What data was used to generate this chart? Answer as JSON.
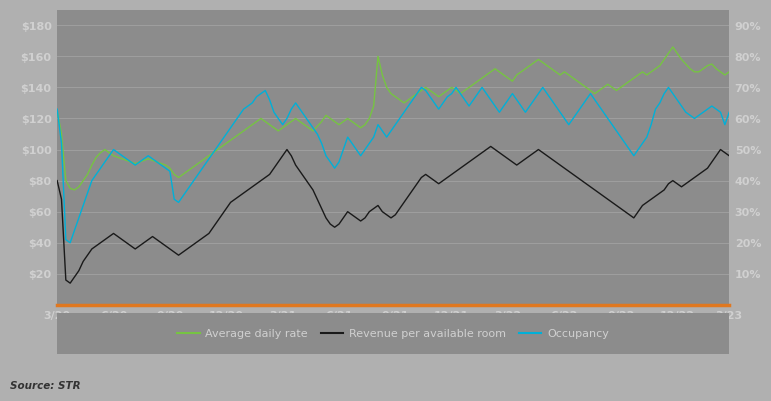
{
  "plot_bg_color": "#8c8c8c",
  "fig_bg_color": "#b0b0b0",
  "legend_bg_color": "#8c8c8c",
  "grid_color": "#a8a8a8",
  "orange_line_color": "#e07820",
  "adr_color": "#76c442",
  "revpar_color": "#1a1a1a",
  "occ_color": "#00b0d8",
  "tick_label_color": "#d0d0d0",
  "source_text": "Source: STR",
  "legend_labels": [
    "Average daily rate",
    "Revenue per available room",
    "Occupancy"
  ],
  "x_tick_labels": [
    "3/20",
    "6/20",
    "9/20",
    "12/20",
    "3/21",
    "6/21",
    "9/21",
    "12/21",
    "3/22",
    "6/22",
    "9/22",
    "12/22",
    "3/23"
  ],
  "y_left_ticks": [
    20,
    40,
    60,
    80,
    100,
    120,
    140,
    160,
    180
  ],
  "y_left_labels": [
    "$20",
    "$40",
    "$60",
    "$80",
    "$100",
    "$120",
    "$140",
    "$160",
    "$180"
  ],
  "y_right_ticks": [
    10,
    20,
    30,
    40,
    50,
    60,
    70,
    80,
    90
  ],
  "y_right_labels": [
    "10%",
    "20%",
    "30%",
    "40%",
    "50%",
    "60%",
    "70%",
    "80%",
    "90%"
  ],
  "ylim_left": [
    0,
    190
  ],
  "ylim_right": [
    0,
    95
  ],
  "axis_fontsize": 8,
  "legend_fontsize": 8,
  "adr_data": [
    125,
    110,
    80,
    75,
    74,
    76,
    80,
    84,
    90,
    95,
    98,
    100,
    98,
    96,
    95,
    94,
    93,
    92,
    91,
    92,
    93,
    94,
    93,
    92,
    91,
    90,
    88,
    84,
    82,
    84,
    86,
    88,
    90,
    92,
    94,
    96,
    98,
    100,
    102,
    104,
    106,
    108,
    110,
    112,
    114,
    116,
    118,
    120,
    118,
    116,
    114,
    112,
    114,
    116,
    118,
    120,
    118,
    116,
    114,
    112,
    115,
    118,
    122,
    120,
    118,
    116,
    118,
    120,
    118,
    116,
    114,
    116,
    120,
    128,
    160,
    148,
    140,
    136,
    134,
    132,
    130,
    132,
    134,
    136,
    138,
    140,
    138,
    136,
    134,
    136,
    138,
    140,
    138,
    136,
    138,
    140,
    142,
    144,
    146,
    148,
    150,
    152,
    150,
    148,
    146,
    144,
    148,
    150,
    152,
    154,
    156,
    158,
    156,
    154,
    152,
    150,
    148,
    150,
    148,
    146,
    144,
    142,
    140,
    138,
    136,
    138,
    140,
    142,
    140,
    138,
    140,
    142,
    144,
    146,
    148,
    150,
    148,
    150,
    152,
    154,
    158,
    162,
    166,
    162,
    158,
    155,
    152,
    150,
    150,
    152,
    154,
    155,
    152,
    150,
    148,
    150
  ],
  "revpar_data": [
    80,
    68,
    16,
    14,
    18,
    22,
    28,
    32,
    36,
    38,
    40,
    42,
    44,
    46,
    44,
    42,
    40,
    38,
    36,
    38,
    40,
    42,
    44,
    42,
    40,
    38,
    36,
    34,
    32,
    34,
    36,
    38,
    40,
    42,
    44,
    46,
    50,
    54,
    58,
    62,
    66,
    68,
    70,
    72,
    74,
    76,
    78,
    80,
    82,
    84,
    88,
    92,
    96,
    100,
    96,
    90,
    86,
    82,
    78,
    74,
    68,
    62,
    56,
    52,
    50,
    52,
    56,
    60,
    58,
    56,
    54,
    56,
    60,
    62,
    64,
    60,
    58,
    56,
    58,
    62,
    66,
    70,
    74,
    78,
    82,
    84,
    82,
    80,
    78,
    80,
    82,
    84,
    86,
    88,
    90,
    92,
    94,
    96,
    98,
    100,
    102,
    100,
    98,
    96,
    94,
    92,
    90,
    92,
    94,
    96,
    98,
    100,
    98,
    96,
    94,
    92,
    90,
    88,
    86,
    84,
    82,
    80,
    78,
    76,
    74,
    72,
    70,
    68,
    66,
    64,
    62,
    60,
    58,
    56,
    60,
    64,
    66,
    68,
    70,
    72,
    74,
    78,
    80,
    78,
    76,
    78,
    80,
    82,
    84,
    86,
    88,
    92,
    96,
    100,
    98,
    96
  ],
  "occ_data": [
    63,
    52,
    21,
    20,
    24,
    28,
    32,
    36,
    40,
    42,
    44,
    46,
    48,
    50,
    49,
    48,
    47,
    46,
    45,
    46,
    47,
    48,
    47,
    46,
    45,
    44,
    43,
    34,
    33,
    35,
    37,
    39,
    41,
    43,
    45,
    47,
    49,
    51,
    53,
    55,
    57,
    59,
    61,
    63,
    64,
    65,
    67,
    68,
    69,
    66,
    62,
    60,
    58,
    60,
    63,
    65,
    63,
    61,
    59,
    57,
    55,
    52,
    48,
    46,
    44,
    46,
    50,
    54,
    52,
    50,
    48,
    50,
    52,
    54,
    58,
    56,
    54,
    56,
    58,
    60,
    62,
    64,
    66,
    68,
    70,
    69,
    67,
    65,
    63,
    65,
    67,
    68,
    70,
    68,
    66,
    64,
    66,
    68,
    70,
    68,
    66,
    64,
    62,
    64,
    66,
    68,
    66,
    64,
    62,
    64,
    66,
    68,
    70,
    68,
    66,
    64,
    62,
    60,
    58,
    60,
    62,
    64,
    66,
    68,
    66,
    64,
    62,
    60,
    58,
    56,
    54,
    52,
    50,
    48,
    50,
    52,
    54,
    58,
    63,
    65,
    68,
    70,
    68,
    66,
    64,
    62,
    61,
    60,
    61,
    62,
    63,
    64,
    63,
    62,
    58,
    62
  ]
}
